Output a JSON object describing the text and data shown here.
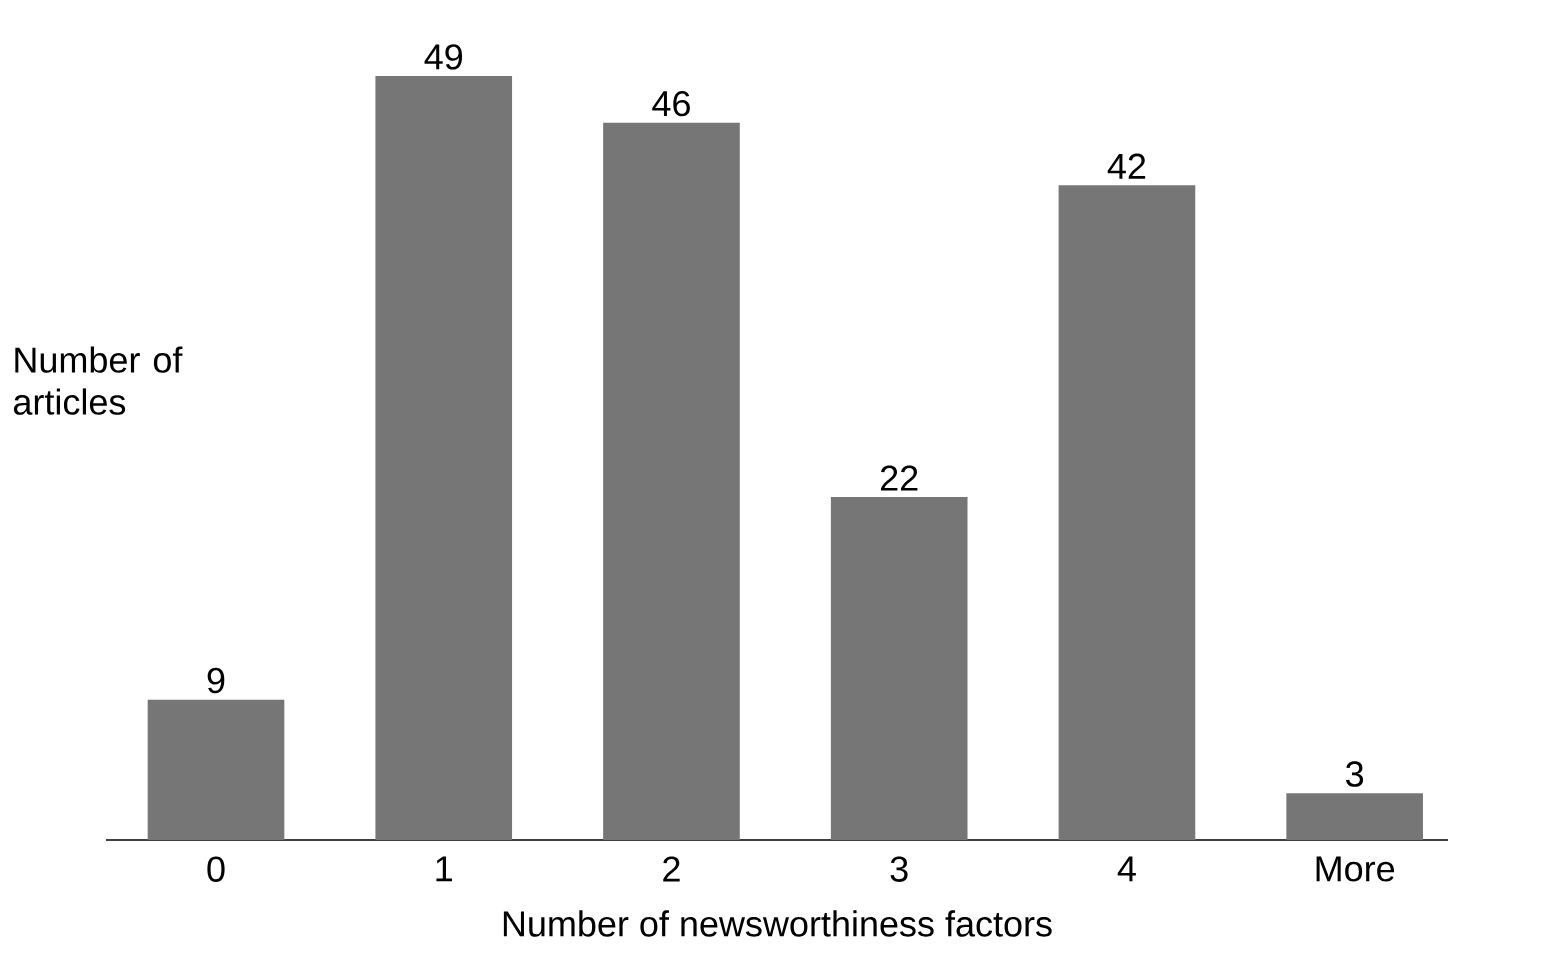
{
  "chart_data": {
    "type": "bar",
    "xlabel": "Number of newsworthiness factors",
    "ylabel": "Number of articles",
    "categories": [
      "0",
      "1",
      "2",
      "3",
      "4",
      "More"
    ],
    "values": [
      9,
      49,
      46,
      22,
      42,
      3
    ],
    "color": "#767676",
    "data_labels": true
  }
}
